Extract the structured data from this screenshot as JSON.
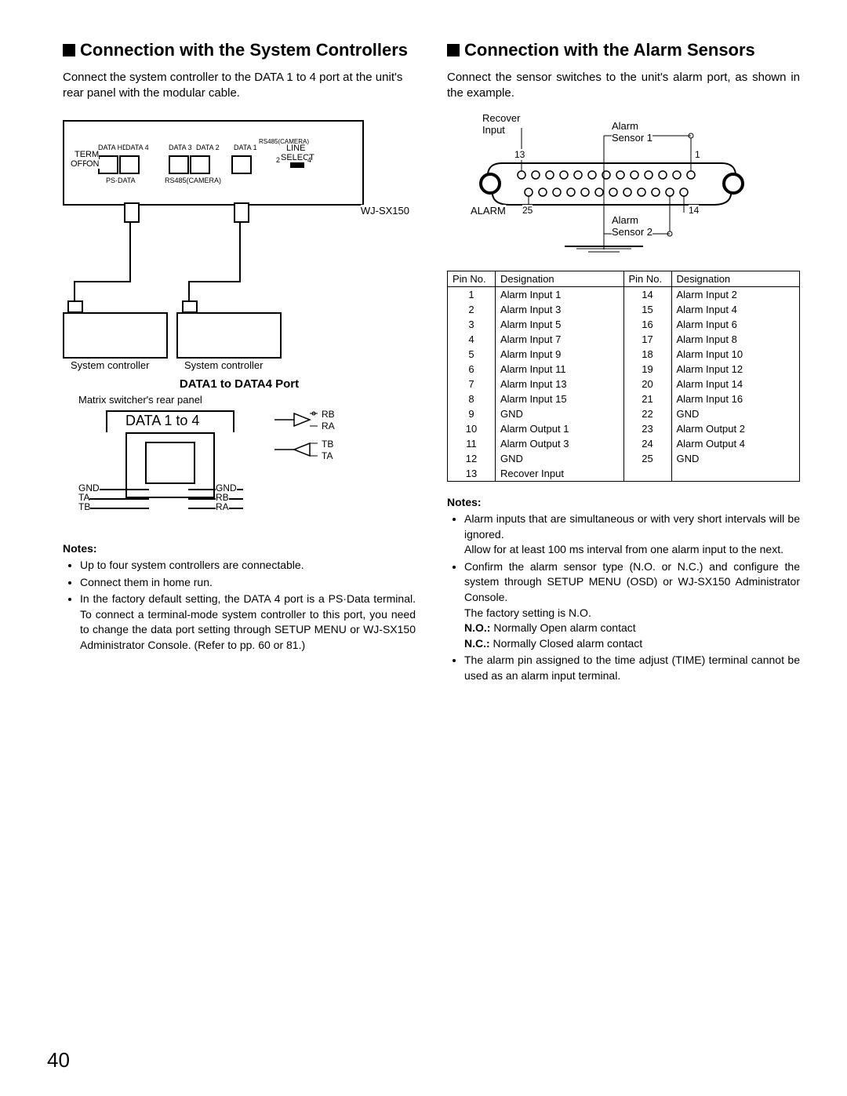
{
  "page_number": "40",
  "left": {
    "heading": "Connection with the System Controllers",
    "intro": "Connect the system controller to the DATA 1 to 4 port at the unit's rear panel with the modular cable.",
    "diagram": {
      "unit_label": "WJ-SX150",
      "top_labels": [
        "DATA HDR",
        "DATA 4",
        "DATA 3",
        "DATA 2",
        "DATA 1",
        "RS485(CAMERA)"
      ],
      "term_label": "TERM",
      "off": "OFF",
      "on": "ON",
      "line": "LINE",
      "select": "SELECT",
      "two": "2",
      "four": "4",
      "psdata": "PS·DATA",
      "rs485": "RS485(CAMERA)",
      "controller_label": "System controller"
    },
    "port_section": {
      "title": "DATA1 to DATA4 Port",
      "subtitle": "Matrix switcher's rear panel",
      "data_label": "DATA 1 to 4",
      "pins_left": [
        "GND",
        "TA",
        "TB"
      ],
      "pins_right": [
        "GND",
        "RB",
        "RA"
      ],
      "arrow_pins": [
        "RB",
        "RA",
        "TB",
        "TA"
      ]
    },
    "notes_hdr": "Notes:",
    "notes": [
      "Up to four system controllers are connectable.",
      "Connect them in home run.",
      "In the factory default setting, the DATA 4 port is a PS·Data terminal. To connect a terminal-mode system controller to this port, you need to change the data port setting through SETUP MENU or WJ-SX150 Administrator Console. (Refer to pp. 60 or 81.)"
    ]
  },
  "right": {
    "heading": "Connection with the Alarm Sensors",
    "intro": "Connect the sensor switches to the unit's alarm port, as shown in the example.",
    "connector": {
      "recover": "Recover",
      "input": "Input",
      "alarm_label": "ALARM",
      "sensor1": "Alarm\nSensor 1",
      "sensor2": "Alarm\nSensor 2",
      "pin1": "1",
      "pin13": "13",
      "pin14": "14",
      "pin25": "25"
    },
    "pin_table": {
      "headers": [
        "Pin No.",
        "Designation",
        "Pin No.",
        "Designation"
      ],
      "left_rows": [
        [
          "1",
          "Alarm Input 1"
        ],
        [
          "2",
          "Alarm Input 3"
        ],
        [
          "3",
          "Alarm Input 5"
        ],
        [
          "4",
          "Alarm Input 7"
        ],
        [
          "5",
          "Alarm Input 9"
        ],
        [
          "6",
          "Alarm Input 11"
        ],
        [
          "7",
          "Alarm Input 13"
        ],
        [
          "8",
          "Alarm Input 15"
        ],
        [
          "9",
          "GND"
        ],
        [
          "10",
          "Alarm Output 1"
        ],
        [
          "11",
          "Alarm Output 3"
        ],
        [
          "12",
          "GND"
        ],
        [
          "13",
          "Recover Input"
        ]
      ],
      "right_rows": [
        [
          "14",
          "Alarm Input 2"
        ],
        [
          "15",
          "Alarm Input 4"
        ],
        [
          "16",
          "Alarm Input 6"
        ],
        [
          "17",
          "Alarm Input 8"
        ],
        [
          "18",
          "Alarm Input 10"
        ],
        [
          "19",
          "Alarm Input 12"
        ],
        [
          "20",
          "Alarm Input 14"
        ],
        [
          "21",
          "Alarm Input 16"
        ],
        [
          "22",
          "GND"
        ],
        [
          "23",
          "Alarm Output 2"
        ],
        [
          "24",
          "Alarm Output 4"
        ],
        [
          "25",
          "GND"
        ],
        [
          "",
          ""
        ]
      ]
    },
    "notes_hdr": "Notes:",
    "notes": [
      {
        "text": "Alarm inputs that are simultaneous or with very short intervals will be ignored.",
        "after": "Allow for at least 100 ms interval from one alarm input to the next."
      },
      {
        "text": "Confirm the alarm sensor type (N.O. or N.C.) and configure the system through SETUP MENU (OSD) or WJ-SX150 Administrator Console.",
        "lines": [
          "The factory setting is N.O.",
          {
            "bold": "N.O.:",
            "rest": " Normally Open alarm contact"
          },
          {
            "bold": "N.C.:",
            "rest": " Normally Closed alarm contact"
          }
        ]
      },
      {
        "text": "The alarm pin assigned to the time adjust (TIME) terminal cannot be used as an alarm input terminal."
      }
    ]
  }
}
